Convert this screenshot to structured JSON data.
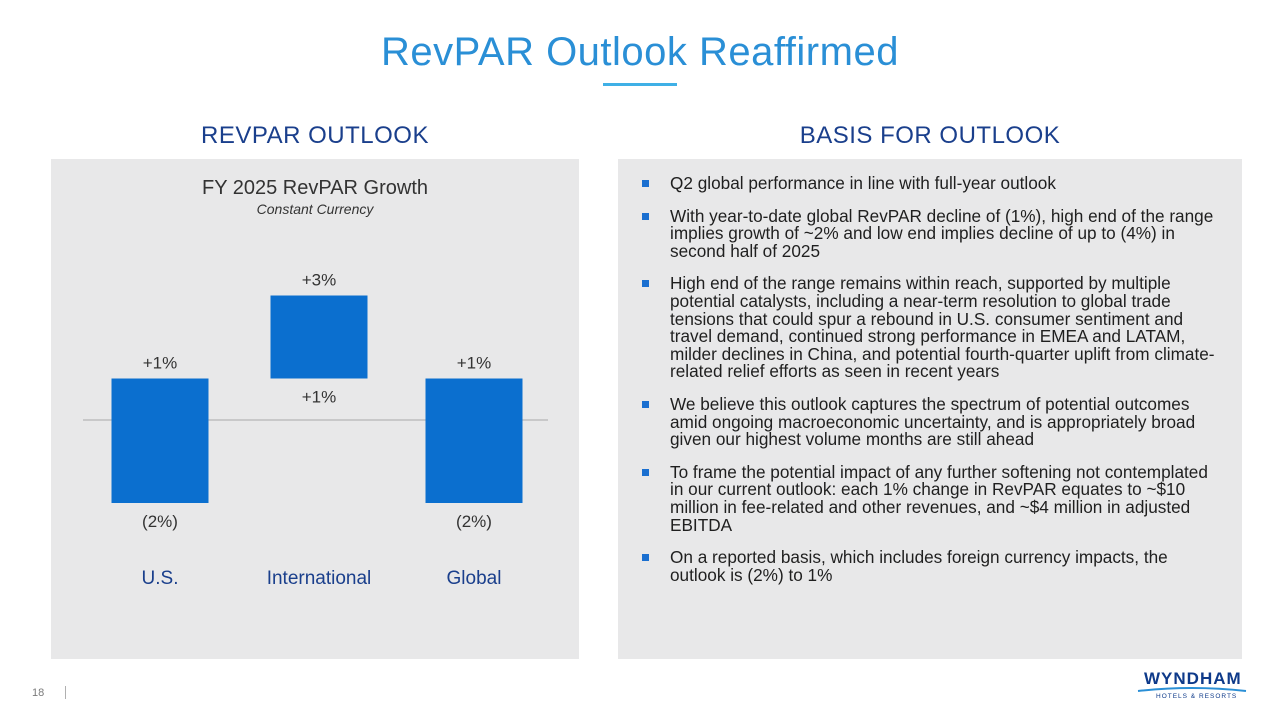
{
  "slide": {
    "title": "RevPAR Outlook Reaffirmed",
    "page_number": "18"
  },
  "left": {
    "heading": "REVPAR OUTLOOK"
  },
  "right": {
    "heading": "BASIS FOR OUTLOOK",
    "bullets": [
      "Q2 global performance in line with full-year outlook",
      "With year-to-date global RevPAR decline of (1%), high end of the range implies growth of ~2% and low end implies decline of up to (4%) in second half of 2025",
      "High end of the range remains within reach, supported by multiple potential catalysts, including a near-term resolution to global trade tensions that could spur a rebound in U.S. consumer sentiment and travel demand, continued strong performance in EMEA and LATAM, milder declines in China, and potential fourth-quarter uplift from climate-related relief efforts as seen in recent years",
      "We believe this outlook captures the spectrum of potential outcomes amid ongoing macroeconomic uncertainty, and is appropriately broad given our highest volume months are still ahead",
      "To frame the potential impact of any further softening not contemplated in our current outlook: each 1% change in RevPAR equates to ~$10 million in fee-related and other revenues, and ~$4 million in adjusted EBITDA",
      "On a reported basis, which includes foreign currency impacts, the outlook is (2%) to 1%"
    ]
  },
  "logo": {
    "name": "WYNDHAM",
    "tagline": "HOTELS & RESORTS"
  },
  "colors": {
    "title": "#2a8fd6",
    "heading": "#1a3f8c",
    "bar": "#0b6fcf",
    "category": "#1a3f8c",
    "panel": "#e8e8e9"
  },
  "chart_data": {
    "type": "bar",
    "title": "FY 2025 RevPAR Growth",
    "subtitle": "Constant Currency",
    "categories": [
      "U.S.",
      "International",
      "Global"
    ],
    "ranges": [
      {
        "low": -2,
        "high": 1,
        "low_label": "(2%)",
        "high_label": "+1%"
      },
      {
        "low": 1,
        "high": 3,
        "low_label": "+1%",
        "high_label": "+3%"
      },
      {
        "low": -2,
        "high": 1,
        "low_label": "(2%)",
        "high_label": "+1%"
      }
    ],
    "ylim": [
      -2,
      3
    ],
    "baseline": 0,
    "grid": false
  }
}
